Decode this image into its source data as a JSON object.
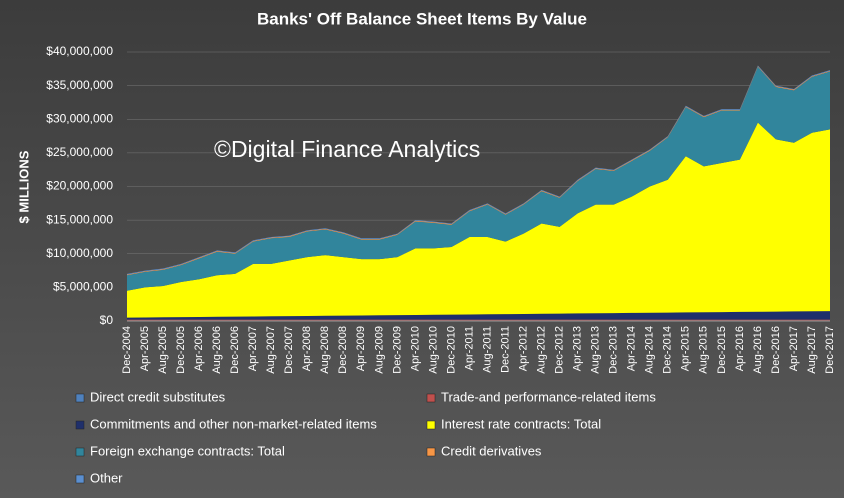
{
  "chart_data": {
    "type": "stacked_area",
    "title": "Banks' Off Balance Sheet Items By Value",
    "annotation": "©Digital Finance Analytics",
    "y_label": "$ MILLIONS",
    "categories": [
      "Dec-2004",
      "Apr-2005",
      "Aug-2005",
      "Dec-2005",
      "Apr-2006",
      "Aug-2006",
      "Dec-2006",
      "Apr-2007",
      "Aug-2007",
      "Dec-2007",
      "Apr-2008",
      "Aug-2008",
      "Dec-2008",
      "Apr-2009",
      "Aug-2009",
      "Dec-2009",
      "Apr-2010",
      "Aug-2010",
      "Dec-2010",
      "Apr-2011",
      "Aug-2011",
      "Dec-2011",
      "Apr-2012",
      "Aug-2012",
      "Dec-2012",
      "Apr-2013",
      "Aug-2013",
      "Dec-2013",
      "Apr-2014",
      "Aug-2014",
      "Dec-2014",
      "Apr-2015",
      "Aug-2015",
      "Dec-2015",
      "Apr-2016",
      "Aug-2016",
      "Dec-2016",
      "Apr-2017",
      "Aug-2017",
      "Dec-2017"
    ],
    "series": [
      {
        "name": "Direct credit substitutes",
        "color": "#4f81bd",
        "values": [
          100000,
          100000,
          100000,
          100000,
          100000,
          100000,
          100000,
          100000,
          100000,
          100000,
          100000,
          100000,
          100000,
          100000,
          100000,
          100000,
          100000,
          100000,
          100000,
          100000,
          100000,
          100000,
          100000,
          100000,
          100000,
          100000,
          100000,
          100000,
          100000,
          100000,
          100000,
          100000,
          100000,
          100000,
          100000,
          100000,
          100000,
          100000,
          100000,
          100000
        ]
      },
      {
        "name": "Trade-and performance-related items",
        "color": "#c0504d",
        "values": [
          100000,
          100000,
          100000,
          100000,
          100000,
          100000,
          100000,
          100000,
          100000,
          100000,
          100000,
          100000,
          100000,
          100000,
          100000,
          100000,
          100000,
          100000,
          100000,
          100000,
          100000,
          100000,
          100000,
          100000,
          100000,
          100000,
          100000,
          100000,
          100000,
          100000,
          100000,
          100000,
          100000,
          100000,
          100000,
          100000,
          100000,
          100000,
          100000,
          100000
        ]
      },
      {
        "name": "Commitments and other non-market-related items",
        "color": "#1f2f6b",
        "values": [
          300000,
          325000,
          350000,
          375000,
          400000,
          425000,
          450000,
          475000,
          500000,
          525000,
          550000,
          575000,
          600000,
          625000,
          650000,
          675000,
          700000,
          725000,
          750000,
          775000,
          800000,
          825000,
          850000,
          875000,
          900000,
          925000,
          950000,
          975000,
          1000000,
          1025000,
          1050000,
          1075000,
          1100000,
          1125000,
          1150000,
          1175000,
          1200000,
          1225000,
          1250000,
          1275000
        ]
      },
      {
        "name": "Interest rate contracts: Total",
        "color": "#ffff00",
        "values": [
          4000000,
          4475000,
          4650000,
          5225000,
          5600000,
          6175000,
          6350000,
          7825000,
          7800000,
          8275000,
          8750000,
          9025000,
          8700000,
          8375000,
          8350000,
          8625000,
          9900000,
          9875000,
          10050000,
          11525000,
          11500000,
          10775000,
          11950000,
          13425000,
          12900000,
          14875000,
          16150000,
          16125000,
          17300000,
          18775000,
          19750000,
          23225000,
          21700000,
          22175000,
          22650000,
          28125000,
          25600000,
          25075000,
          26550000,
          27025000
        ]
      },
      {
        "name": "Foreign exchange contracts: Total",
        "color": "#31859c",
        "values": [
          2300000,
          2300000,
          2400000,
          2500000,
          3100000,
          3500000,
          3000000,
          3300000,
          3800000,
          3500000,
          3800000,
          3800000,
          3500000,
          2900000,
          2900000,
          3300000,
          4000000,
          3800000,
          3300000,
          3800000,
          4800000,
          4000000,
          4300000,
          4800000,
          4300000,
          4800000,
          5300000,
          5000000,
          5300000,
          5300000,
          6300000,
          7300000,
          7300000,
          7800000,
          7300000,
          8300000,
          7800000,
          7800000,
          8300000,
          8600000
        ]
      },
      {
        "name": "Credit derivatives",
        "color": "#f79646",
        "values": [
          100000,
          100000,
          100000,
          100000,
          100000,
          100000,
          100000,
          100000,
          100000,
          100000,
          100000,
          100000,
          100000,
          100000,
          100000,
          100000,
          100000,
          100000,
          100000,
          100000,
          100000,
          100000,
          100000,
          100000,
          100000,
          100000,
          100000,
          100000,
          100000,
          100000,
          100000,
          100000,
          100000,
          100000,
          100000,
          100000,
          100000,
          100000,
          100000,
          100000
        ]
      },
      {
        "name": "Other",
        "color": "#5b8fd0",
        "values": [
          100000,
          100000,
          100000,
          100000,
          100000,
          100000,
          100000,
          100000,
          100000,
          100000,
          100000,
          100000,
          100000,
          100000,
          100000,
          100000,
          100000,
          100000,
          100000,
          100000,
          100000,
          100000,
          100000,
          100000,
          100000,
          100000,
          100000,
          100000,
          100000,
          100000,
          100000,
          100000,
          100000,
          100000,
          100000,
          100000,
          100000,
          100000,
          100000,
          100000
        ]
      }
    ],
    "ylim": [
      0,
      40000000
    ],
    "yticks": [
      {
        "value": 0,
        "label": "$0"
      },
      {
        "value": 5000000,
        "label": "$5,000,000"
      },
      {
        "value": 10000000,
        "label": "$10,000,000"
      },
      {
        "value": 15000000,
        "label": "$15,000,000"
      },
      {
        "value": 20000000,
        "label": "$20,000,000"
      },
      {
        "value": 25000000,
        "label": "$25,000,000"
      },
      {
        "value": 30000000,
        "label": "$30,000,000"
      },
      {
        "value": 35000000,
        "label": "$35,000,000"
      },
      {
        "value": 40000000,
        "label": "$40,000,000"
      }
    ],
    "grid": true
  }
}
